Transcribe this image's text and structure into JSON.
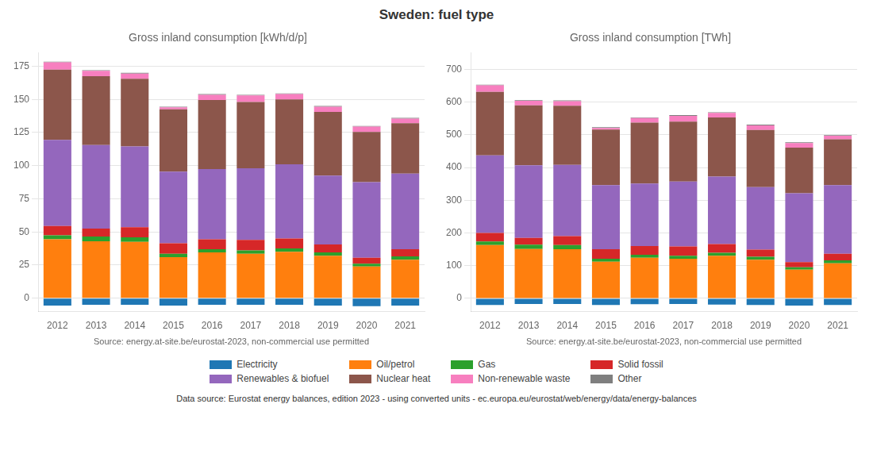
{
  "title": "Sweden: fuel type",
  "annotations": [
    "Data source: Eurostat energy balances, edition 2023 - using converted units - ec.europa.eu/eurostat/web/energy/data/energy-balances"
  ],
  "legend": "bottom",
  "chart_data": [
    {
      "type": "bar",
      "stacked": true,
      "grid": true,
      "title": "Gross inland consumption [kWh/d/p]",
      "xlabel": "Source: energy.at-site.be/eurostat-2023, non-commercial use permitted",
      "categories": [
        "2012",
        "2013",
        "2014",
        "2015",
        "2016",
        "2017",
        "2018",
        "2019",
        "2020",
        "2021"
      ],
      "series": [
        {
          "name": "Electricity",
          "color": "#1f77b4",
          "values": [
            -5.5,
            -5.0,
            -5.0,
            -5.5,
            -5.0,
            -5.0,
            -5.0,
            -5.5,
            -6.0,
            -5.5
          ]
        },
        {
          "name": "Oil/petrol",
          "color": "#ff7f0e",
          "values": [
            44.5,
            43.0,
            42.5,
            31.0,
            34.5,
            33.5,
            35.0,
            32.0,
            24.0,
            29.0
          ]
        },
        {
          "name": "Gas",
          "color": "#2ca02c",
          "values": [
            3.0,
            3.5,
            3.5,
            2.5,
            2.5,
            2.5,
            2.5,
            2.5,
            2.0,
            2.5
          ]
        },
        {
          "name": "Solid fossil",
          "color": "#d62728",
          "values": [
            7.0,
            6.0,
            7.5,
            8.0,
            7.5,
            8.0,
            7.5,
            6.0,
            4.5,
            5.5
          ]
        },
        {
          "name": "Renewables & biofuel",
          "color": "#9467bd",
          "values": [
            65.0,
            63.0,
            61.0,
            54.0,
            53.0,
            54.0,
            56.0,
            52.0,
            57.0,
            57.0
          ]
        },
        {
          "name": "Nuclear heat",
          "color": "#8c564b",
          "values": [
            53.0,
            52.0,
            51.0,
            47.0,
            52.0,
            50.0,
            49.0,
            48.0,
            38.0,
            38.0
          ]
        },
        {
          "name": "Non-renewable waste",
          "color": "#f77fbf",
          "values": [
            5.5,
            4.0,
            4.0,
            1.5,
            4.0,
            5.0,
            4.0,
            4.0,
            4.0,
            3.5
          ]
        },
        {
          "name": "Other",
          "color": "#7f7f7f",
          "values": [
            0.5,
            0.5,
            0.5,
            0.5,
            0.5,
            0.5,
            0.5,
            0.5,
            0.5,
            0.5
          ]
        }
      ],
      "ylim": [
        -10,
        185
      ],
      "yticks": [
        0,
        25,
        50,
        75,
        100,
        125,
        150,
        175
      ]
    },
    {
      "type": "bar",
      "stacked": true,
      "grid": true,
      "title": "Gross inland consumption [TWh]",
      "xlabel": "Source: energy.at-site.be/eurostat-2023, non-commercial use permitted",
      "categories": [
        "2012",
        "2013",
        "2014",
        "2015",
        "2016",
        "2017",
        "2018",
        "2019",
        "2020",
        "2021"
      ],
      "series": [
        {
          "name": "Electricity",
          "color": "#1f77b4",
          "values": [
            -20,
            -17,
            -17,
            -20,
            -18,
            -17,
            -19,
            -20,
            -22,
            -20
          ]
        },
        {
          "name": "Oil/petrol",
          "color": "#ff7f0e",
          "values": [
            163,
            151,
            150,
            112,
            124,
            121,
            130,
            118,
            88,
            107
          ]
        },
        {
          "name": "Gas",
          "color": "#2ca02c",
          "values": [
            11,
            13,
            13,
            9,
            9,
            9,
            9,
            9,
            7,
            9
          ]
        },
        {
          "name": "Solid fossil",
          "color": "#d62728",
          "values": [
            26,
            21,
            27,
            29,
            27,
            29,
            27,
            22,
            16,
            20
          ]
        },
        {
          "name": "Renewables & biofuel",
          "color": "#9467bd",
          "values": [
            237,
            222,
            218,
            196,
            191,
            198,
            206,
            191,
            210,
            210
          ]
        },
        {
          "name": "Nuclear heat",
          "color": "#8c564b",
          "values": [
            194,
            183,
            181,
            170,
            186,
            183,
            181,
            175,
            140,
            140
          ]
        },
        {
          "name": "Non-renewable waste",
          "color": "#f77fbf",
          "values": [
            20,
            14,
            14,
            5,
            14,
            18,
            14,
            14,
            14,
            11
          ]
        },
        {
          "name": "Other",
          "color": "#7f7f7f",
          "values": [
            2,
            2,
            2,
            2,
            2,
            2,
            2,
            2,
            2,
            2
          ]
        }
      ],
      "ylim": [
        -40,
        750
      ],
      "yticks": [
        0,
        100,
        200,
        300,
        400,
        500,
        600,
        700
      ]
    }
  ]
}
